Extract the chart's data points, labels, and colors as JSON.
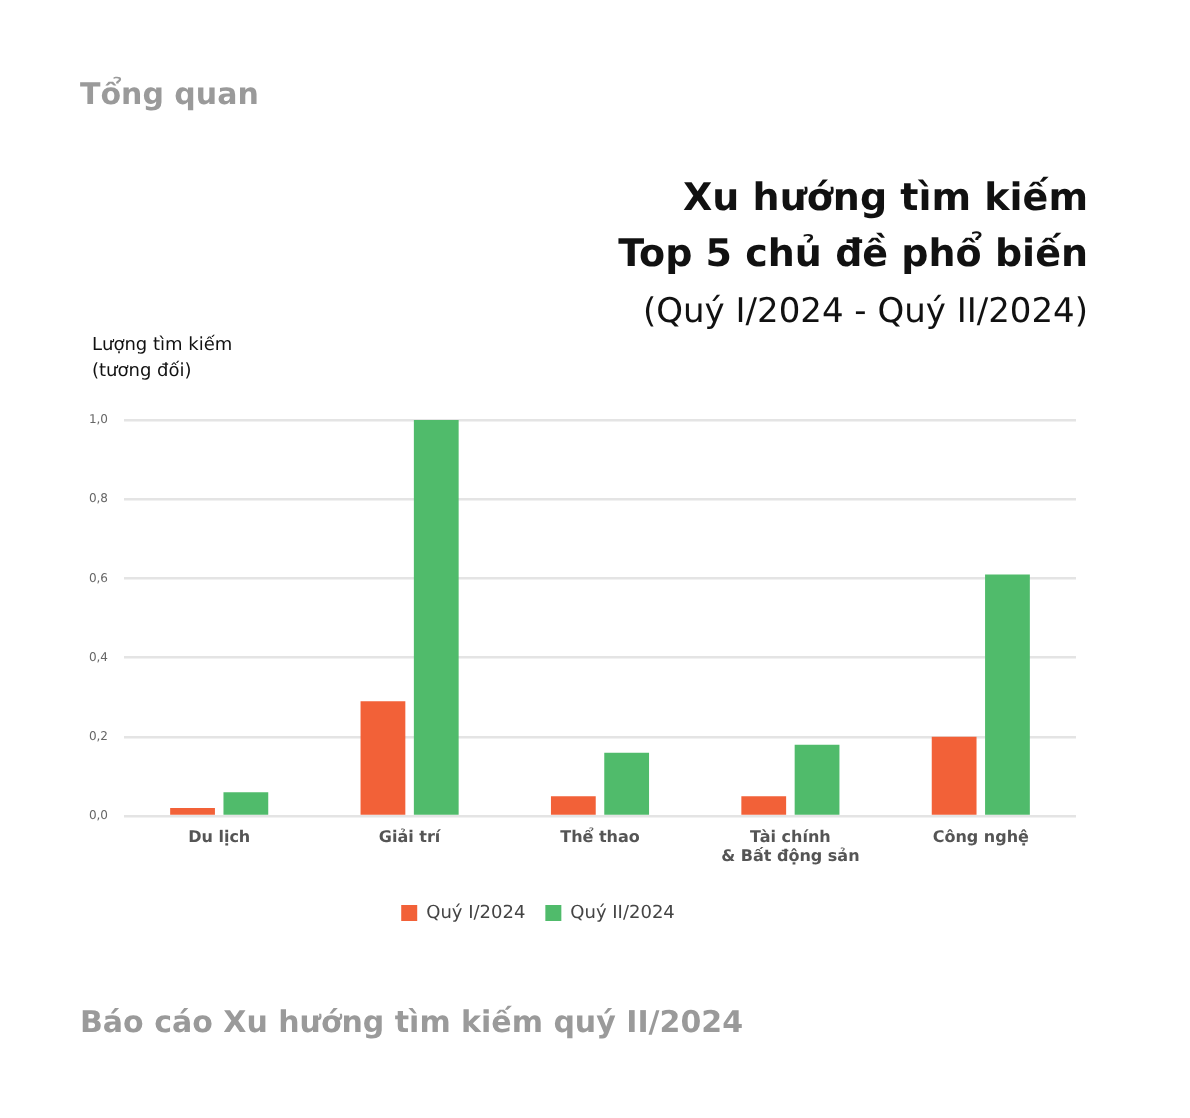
{
  "chart_data": {
    "type": "bar",
    "title": "Xu hướng tìm kiếm",
    "subtitle": "Top 5 chủ đề phổ biến",
    "annotations": [
      "(Quý I/2024 - Quý II/2024)",
      "Tổng quan",
      "Báo cáo Xu hướng tìm kiếm quý II/2024"
    ],
    "ylabel": "Lượng tìm kiếm\n(tương đối)",
    "categories": [
      "Du lịch",
      "Giải trí",
      "Thể thao",
      "Tài chính\n& Bất động sản",
      "Công nghệ"
    ],
    "series": [
      {
        "name": "Quý I/2024",
        "color": "#f26138",
        "values": [
          0.02,
          0.29,
          0.05,
          0.05,
          0.2
        ]
      },
      {
        "name": "Quý II/2024",
        "color": "#50bb6b",
        "values": [
          0.06,
          1.0,
          0.16,
          0.18,
          0.61
        ]
      }
    ],
    "ylim": [
      0,
      1
    ],
    "yticks": [
      {
        "value": 0,
        "label": "0,0"
      },
      {
        "value": 0.2,
        "label": "0,2"
      },
      {
        "value": 0.4,
        "label": "0,4"
      },
      {
        "value": 0.6,
        "label": "0,6"
      },
      {
        "value": 0.8,
        "label": "0,8"
      },
      {
        "value": 1,
        "label": "1,0"
      }
    ],
    "grid": "y",
    "legend": "bottom"
  }
}
